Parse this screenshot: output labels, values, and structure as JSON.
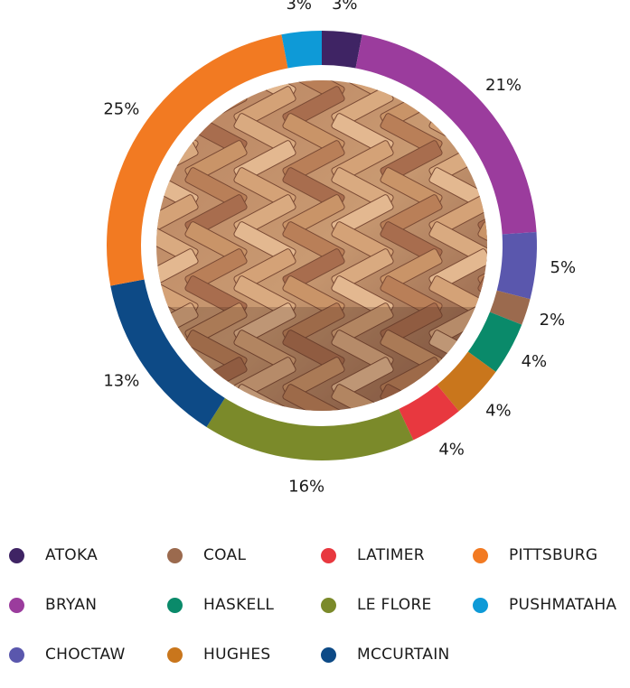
{
  "chart_data": {
    "type": "donut",
    "title": "",
    "slices": [
      {
        "label": "ATOKA",
        "value": 3,
        "display": "3%",
        "color": "#3f2464"
      },
      {
        "label": "BRYAN",
        "value": 21,
        "display": "21%",
        "color": "#9b3c9d"
      },
      {
        "label": "CHOCTAW",
        "value": 5,
        "display": "5%",
        "color": "#5a57ad"
      },
      {
        "label": "COAL",
        "value": 2,
        "display": "2%",
        "color": "#9b6a4e"
      },
      {
        "label": "HASKELL",
        "value": 4,
        "display": "4%",
        "color": "#0a8a6a"
      },
      {
        "label": "HUGHES",
        "value": 4,
        "display": "4%",
        "color": "#c9761c"
      },
      {
        "label": "LATIMER",
        "value": 4,
        "display": "4%",
        "color": "#e8383f"
      },
      {
        "label": "LE FLORE",
        "value": 16,
        "display": "16%",
        "color": "#7b8a2a"
      },
      {
        "label": "MCCURTAIN",
        "value": 13,
        "display": "13%",
        "color": "#0d4a86"
      },
      {
        "label": "PITTSBURG",
        "value": 25,
        "display": "25%",
        "color": "#f27a22"
      },
      {
        "label": "PUSHMATAHA",
        "value": 3,
        "display": "3%",
        "color": "#0e9ad7"
      }
    ],
    "center_image": "woven cane basket texture",
    "legend": {
      "position": "bottom",
      "columns": 4
    }
  }
}
